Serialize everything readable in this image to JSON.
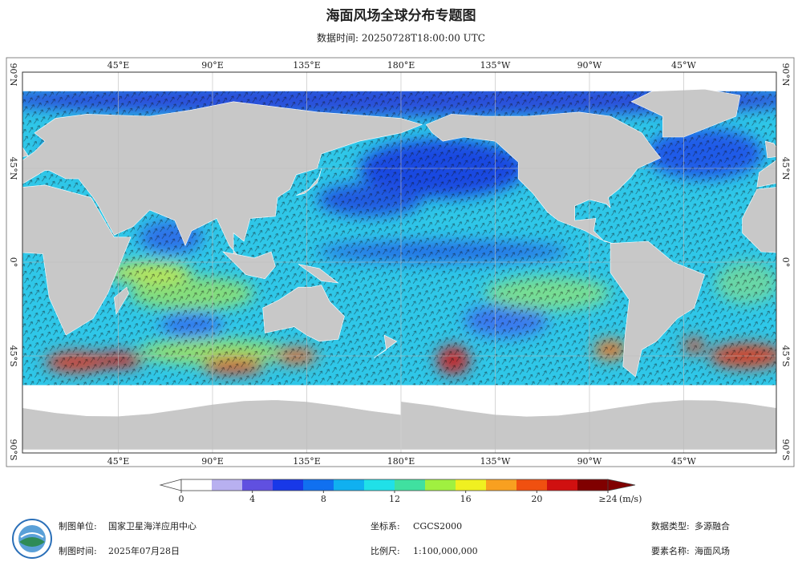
{
  "title": "海面风场全球分布专题图",
  "subtitle": "数据时间: 20250728T18:00:00 UTC",
  "map": {
    "lon_labels": [
      "45°E",
      "90°E",
      "135°E",
      "180°E",
      "135°W",
      "90°W",
      "45°W"
    ],
    "lat_labels": [
      "90°N",
      "45°N",
      "0°",
      "45°S",
      "90°S"
    ]
  },
  "colorbar": {
    "range": [
      0,
      24
    ],
    "ticks": [
      0,
      4,
      8,
      12,
      16,
      20,
      {
        "value": 24,
        "label": "≥24"
      }
    ],
    "unit": "(m/s)",
    "colors": [
      "#ffffff",
      "#b8b0f0",
      "#6050e0",
      "#1838e8",
      "#1070f0",
      "#10b0f0",
      "#20e0e8",
      "#40e0a0",
      "#a0f040",
      "#f0f020",
      "#f8a020",
      "#f05010",
      "#d01010",
      "#800000"
    ]
  },
  "footer": {
    "left": [
      {
        "label": "制图单位:",
        "value": "国家卫星海洋应用中心"
      },
      {
        "label": "制图时间:",
        "value": "2025年07月28日"
      }
    ],
    "middle": [
      {
        "label": "坐标系:",
        "value": "CGCS2000"
      },
      {
        "label": "比例尺:",
        "value": "1:100,000,000"
      }
    ],
    "right": [
      {
        "label": "数据类型:",
        "value": "多源融合"
      },
      {
        "label": "要素名称:",
        "value": "海面风场"
      }
    ]
  }
}
